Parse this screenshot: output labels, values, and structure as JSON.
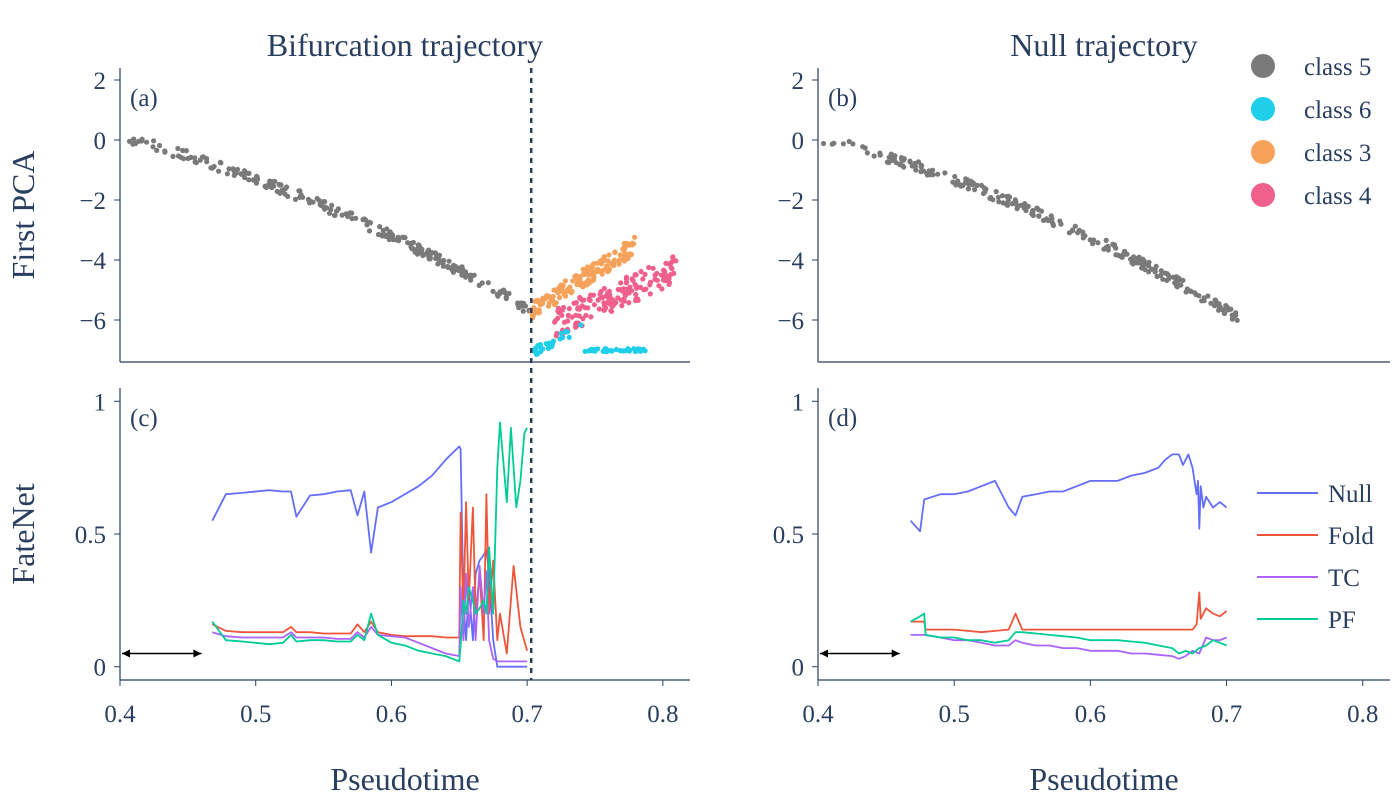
{
  "colors": {
    "text": "#2a3f5f",
    "class5": "#7a7a7a",
    "class6": "#1fcfea",
    "class3": "#f7a25a",
    "class4": "#f0608d",
    "null": "#636efa",
    "fold": "#ef553b",
    "tc": "#ab63fa",
    "pf": "#00cc96"
  },
  "chart_data": [
    {
      "type": "scatter",
      "panel": "(a)",
      "title": "Bifurcation trajectory",
      "ylabel": "First PCA",
      "xlabel": "",
      "xlim": [
        0.4,
        0.82
      ],
      "ylim": [
        -7.4,
        2.4
      ],
      "yticks": [
        "2",
        "0",
        "−2",
        "−4",
        "−6"
      ],
      "ytick_values": [
        2,
        0,
        -2,
        -4,
        -6
      ],
      "bifurcation_x": 0.703,
      "legend": {
        "placement": "top-right",
        "entries": [
          "class 5",
          "class 6",
          "class 3",
          "class 4"
        ]
      },
      "series_ranges": [
        {
          "name": "class 5",
          "x_start": 0.4,
          "x_end": 0.703,
          "y_start": 0.1,
          "y_end": -5.7
        },
        {
          "name": "class 3",
          "x_start": 0.703,
          "x_end": 0.78,
          "y_start": -5.7,
          "y_end": -3.5
        },
        {
          "name": "class 4",
          "x_start": 0.72,
          "x_end": 0.81,
          "y_start": -6.1,
          "y_end": -4.3
        },
        {
          "name": "class 6",
          "x_start": 0.703,
          "x_end": 0.79,
          "y_start": -7.1,
          "y_end": -7.0
        }
      ]
    },
    {
      "type": "scatter",
      "panel": "(b)",
      "title": "Null trajectory",
      "ylabel": "",
      "xlabel": "",
      "xlim": [
        0.4,
        0.82
      ],
      "ylim": [
        -7.4,
        2.4
      ],
      "yticks": [
        "2",
        "0",
        "−2",
        "−4",
        "−6"
      ],
      "ytick_values": [
        2,
        0,
        -2,
        -4,
        -6
      ],
      "series_ranges": [
        {
          "name": "class 5",
          "x_start": 0.4,
          "x_end": 0.708,
          "y_start": 0.1,
          "y_end": -5.9
        }
      ]
    },
    {
      "type": "line",
      "panel": "(c)",
      "ylabel": "FateNet",
      "xlabel": "Pseudotime",
      "xlim": [
        0.4,
        0.82
      ],
      "ylim": [
        -0.05,
        1.05
      ],
      "yticks": [
        "1",
        "0.5",
        "0"
      ],
      "ytick_values": [
        1,
        0.5,
        0
      ],
      "xticks": [
        "0.4",
        "0.5",
        "0.6",
        "0.7",
        "0.8"
      ],
      "xtick_values": [
        0.4,
        0.5,
        0.6,
        0.7,
        0.8
      ],
      "bifurcation_x": 0.703,
      "arrow_x": [
        0.4,
        0.46
      ],
      "arrow_y": 0.05,
      "series": [
        {
          "name": "Null",
          "x": [
            0.468,
            0.478,
            0.49,
            0.5,
            0.51,
            0.52,
            0.526,
            0.53,
            0.54,
            0.55,
            0.56,
            0.57,
            0.575,
            0.58,
            0.585,
            0.59,
            0.6,
            0.61,
            0.62,
            0.63,
            0.64,
            0.65,
            0.651,
            0.653,
            0.655,
            0.657,
            0.66,
            0.662,
            0.665,
            0.668,
            0.67,
            0.672,
            0.675,
            0.678,
            0.68,
            0.685,
            0.69,
            0.7
          ],
          "y": [
            0.55,
            0.65,
            0.655,
            0.66,
            0.665,
            0.66,
            0.66,
            0.565,
            0.645,
            0.65,
            0.66,
            0.665,
            0.57,
            0.66,
            0.43,
            0.6,
            0.62,
            0.65,
            0.68,
            0.72,
            0.78,
            0.83,
            0.82,
            0.25,
            0.1,
            0.3,
            0.1,
            0.35,
            0.4,
            0.42,
            0.44,
            0.35,
            0.1,
            0.0,
            0.0,
            0.0,
            0.0,
            0.0
          ]
        },
        {
          "name": "Fold",
          "x": [
            0.468,
            0.478,
            0.49,
            0.5,
            0.51,
            0.52,
            0.526,
            0.53,
            0.54,
            0.55,
            0.56,
            0.57,
            0.575,
            0.58,
            0.585,
            0.59,
            0.6,
            0.61,
            0.62,
            0.63,
            0.64,
            0.65,
            0.651,
            0.653,
            0.655,
            0.657,
            0.66,
            0.662,
            0.665,
            0.668,
            0.67,
            0.672,
            0.675,
            0.678,
            0.68,
            0.685,
            0.69,
            0.695,
            0.7
          ],
          "y": [
            0.16,
            0.135,
            0.13,
            0.13,
            0.13,
            0.13,
            0.15,
            0.13,
            0.13,
            0.125,
            0.125,
            0.125,
            0.16,
            0.13,
            0.17,
            0.13,
            0.12,
            0.115,
            0.115,
            0.115,
            0.11,
            0.11,
            0.58,
            0.2,
            0.62,
            0.25,
            0.6,
            0.2,
            0.35,
            0.1,
            0.65,
            0.2,
            0.4,
            0.1,
            0.2,
            0.05,
            0.38,
            0.15,
            0.06
          ]
        },
        {
          "name": "TC",
          "x": [
            0.468,
            0.478,
            0.49,
            0.5,
            0.51,
            0.52,
            0.526,
            0.53,
            0.54,
            0.55,
            0.56,
            0.57,
            0.575,
            0.58,
            0.585,
            0.59,
            0.6,
            0.61,
            0.62,
            0.63,
            0.64,
            0.65,
            0.651,
            0.653,
            0.655,
            0.657,
            0.66,
            0.662,
            0.665,
            0.668,
            0.67,
            0.672,
            0.675,
            0.678,
            0.68,
            0.685,
            0.69,
            0.7
          ],
          "y": [
            0.13,
            0.115,
            0.11,
            0.11,
            0.11,
            0.11,
            0.13,
            0.11,
            0.11,
            0.11,
            0.105,
            0.105,
            0.13,
            0.11,
            0.15,
            0.12,
            0.115,
            0.11,
            0.09,
            0.07,
            0.05,
            0.04,
            0.3,
            0.1,
            0.35,
            0.15,
            0.3,
            0.1,
            0.38,
            0.2,
            0.36,
            0.1,
            0.03,
            0.02,
            0.02,
            0.02,
            0.02,
            0.02
          ]
        },
        {
          "name": "PF",
          "x": [
            0.468,
            0.478,
            0.49,
            0.5,
            0.51,
            0.52,
            0.526,
            0.53,
            0.54,
            0.55,
            0.56,
            0.57,
            0.575,
            0.58,
            0.585,
            0.59,
            0.6,
            0.61,
            0.62,
            0.63,
            0.64,
            0.65,
            0.651,
            0.653,
            0.655,
            0.657,
            0.66,
            0.662,
            0.665,
            0.668,
            0.67,
            0.672,
            0.675,
            0.678,
            0.68,
            0.682,
            0.685,
            0.688,
            0.69,
            0.692,
            0.695,
            0.698,
            0.7
          ],
          "y": [
            0.17,
            0.1,
            0.095,
            0.09,
            0.085,
            0.09,
            0.12,
            0.095,
            0.1,
            0.1,
            0.095,
            0.095,
            0.12,
            0.1,
            0.2,
            0.12,
            0.09,
            0.08,
            0.06,
            0.05,
            0.04,
            0.02,
            0.08,
            0.25,
            0.2,
            0.3,
            0.25,
            0.2,
            0.22,
            0.25,
            0.2,
            0.45,
            0.2,
            0.75,
            0.92,
            0.8,
            0.62,
            0.9,
            0.75,
            0.6,
            0.7,
            0.88,
            0.9
          ]
        }
      ]
    },
    {
      "type": "line",
      "panel": "(d)",
      "ylabel": "",
      "xlabel": "Pseudotime",
      "xlim": [
        0.4,
        0.82
      ],
      "ylim": [
        -0.05,
        1.05
      ],
      "yticks": [
        "1",
        "0.5",
        "0"
      ],
      "ytick_values": [
        1,
        0.5,
        0
      ],
      "xticks": [
        "0.4",
        "0.5",
        "0.6",
        "0.7",
        "0.8"
      ],
      "xtick_values": [
        0.4,
        0.5,
        0.6,
        0.7,
        0.8
      ],
      "arrow_x": [
        0.4,
        0.46
      ],
      "arrow_y": 0.05,
      "legend": {
        "placement": "right",
        "entries": [
          "Null",
          "Fold",
          "TC",
          "PF"
        ]
      },
      "series": [
        {
          "name": "Null",
          "x": [
            0.468,
            0.475,
            0.478,
            0.49,
            0.5,
            0.51,
            0.52,
            0.53,
            0.54,
            0.545,
            0.55,
            0.56,
            0.57,
            0.58,
            0.59,
            0.6,
            0.61,
            0.62,
            0.63,
            0.64,
            0.65,
            0.655,
            0.66,
            0.665,
            0.668,
            0.67,
            0.672,
            0.675,
            0.678,
            0.679,
            0.68,
            0.681,
            0.683,
            0.685,
            0.69,
            0.695,
            0.7
          ],
          "y": [
            0.55,
            0.51,
            0.63,
            0.65,
            0.65,
            0.66,
            0.68,
            0.7,
            0.6,
            0.57,
            0.64,
            0.65,
            0.66,
            0.66,
            0.68,
            0.7,
            0.7,
            0.7,
            0.72,
            0.73,
            0.75,
            0.78,
            0.8,
            0.8,
            0.76,
            0.78,
            0.8,
            0.75,
            0.65,
            0.7,
            0.52,
            0.68,
            0.6,
            0.64,
            0.6,
            0.62,
            0.6
          ]
        },
        {
          "name": "Fold",
          "x": [
            0.468,
            0.478,
            0.479,
            0.49,
            0.5,
            0.51,
            0.52,
            0.53,
            0.54,
            0.545,
            0.55,
            0.56,
            0.57,
            0.58,
            0.59,
            0.6,
            0.61,
            0.62,
            0.63,
            0.64,
            0.65,
            0.66,
            0.67,
            0.675,
            0.678,
            0.68,
            0.681,
            0.683,
            0.685,
            0.69,
            0.695,
            0.7
          ],
          "y": [
            0.17,
            0.17,
            0.14,
            0.14,
            0.14,
            0.135,
            0.13,
            0.135,
            0.14,
            0.2,
            0.14,
            0.14,
            0.14,
            0.14,
            0.14,
            0.14,
            0.14,
            0.14,
            0.14,
            0.14,
            0.14,
            0.14,
            0.14,
            0.14,
            0.16,
            0.28,
            0.18,
            0.2,
            0.22,
            0.2,
            0.19,
            0.21
          ]
        },
        {
          "name": "TC",
          "x": [
            0.468,
            0.478,
            0.49,
            0.5,
            0.51,
            0.52,
            0.53,
            0.54,
            0.545,
            0.55,
            0.56,
            0.57,
            0.58,
            0.59,
            0.6,
            0.61,
            0.62,
            0.63,
            0.64,
            0.65,
            0.66,
            0.665,
            0.67,
            0.675,
            0.68,
            0.685,
            0.69,
            0.695,
            0.7
          ],
          "y": [
            0.12,
            0.12,
            0.11,
            0.1,
            0.1,
            0.09,
            0.08,
            0.08,
            0.1,
            0.09,
            0.08,
            0.08,
            0.07,
            0.07,
            0.06,
            0.06,
            0.06,
            0.05,
            0.05,
            0.045,
            0.04,
            0.03,
            0.04,
            0.06,
            0.05,
            0.11,
            0.1,
            0.1,
            0.11
          ]
        },
        {
          "name": "PF",
          "x": [
            0.468,
            0.475,
            0.478,
            0.479,
            0.49,
            0.5,
            0.51,
            0.52,
            0.53,
            0.54,
            0.545,
            0.55,
            0.56,
            0.57,
            0.58,
            0.59,
            0.6,
            0.61,
            0.62,
            0.63,
            0.64,
            0.65,
            0.66,
            0.665,
            0.67,
            0.675,
            0.68,
            0.685,
            0.69,
            0.695,
            0.7
          ],
          "y": [
            0.17,
            0.19,
            0.2,
            0.12,
            0.11,
            0.11,
            0.1,
            0.1,
            0.09,
            0.1,
            0.13,
            0.13,
            0.125,
            0.12,
            0.115,
            0.11,
            0.1,
            0.1,
            0.1,
            0.095,
            0.09,
            0.08,
            0.07,
            0.05,
            0.06,
            0.05,
            0.07,
            0.08,
            0.1,
            0.09,
            0.08
          ]
        }
      ]
    }
  ]
}
